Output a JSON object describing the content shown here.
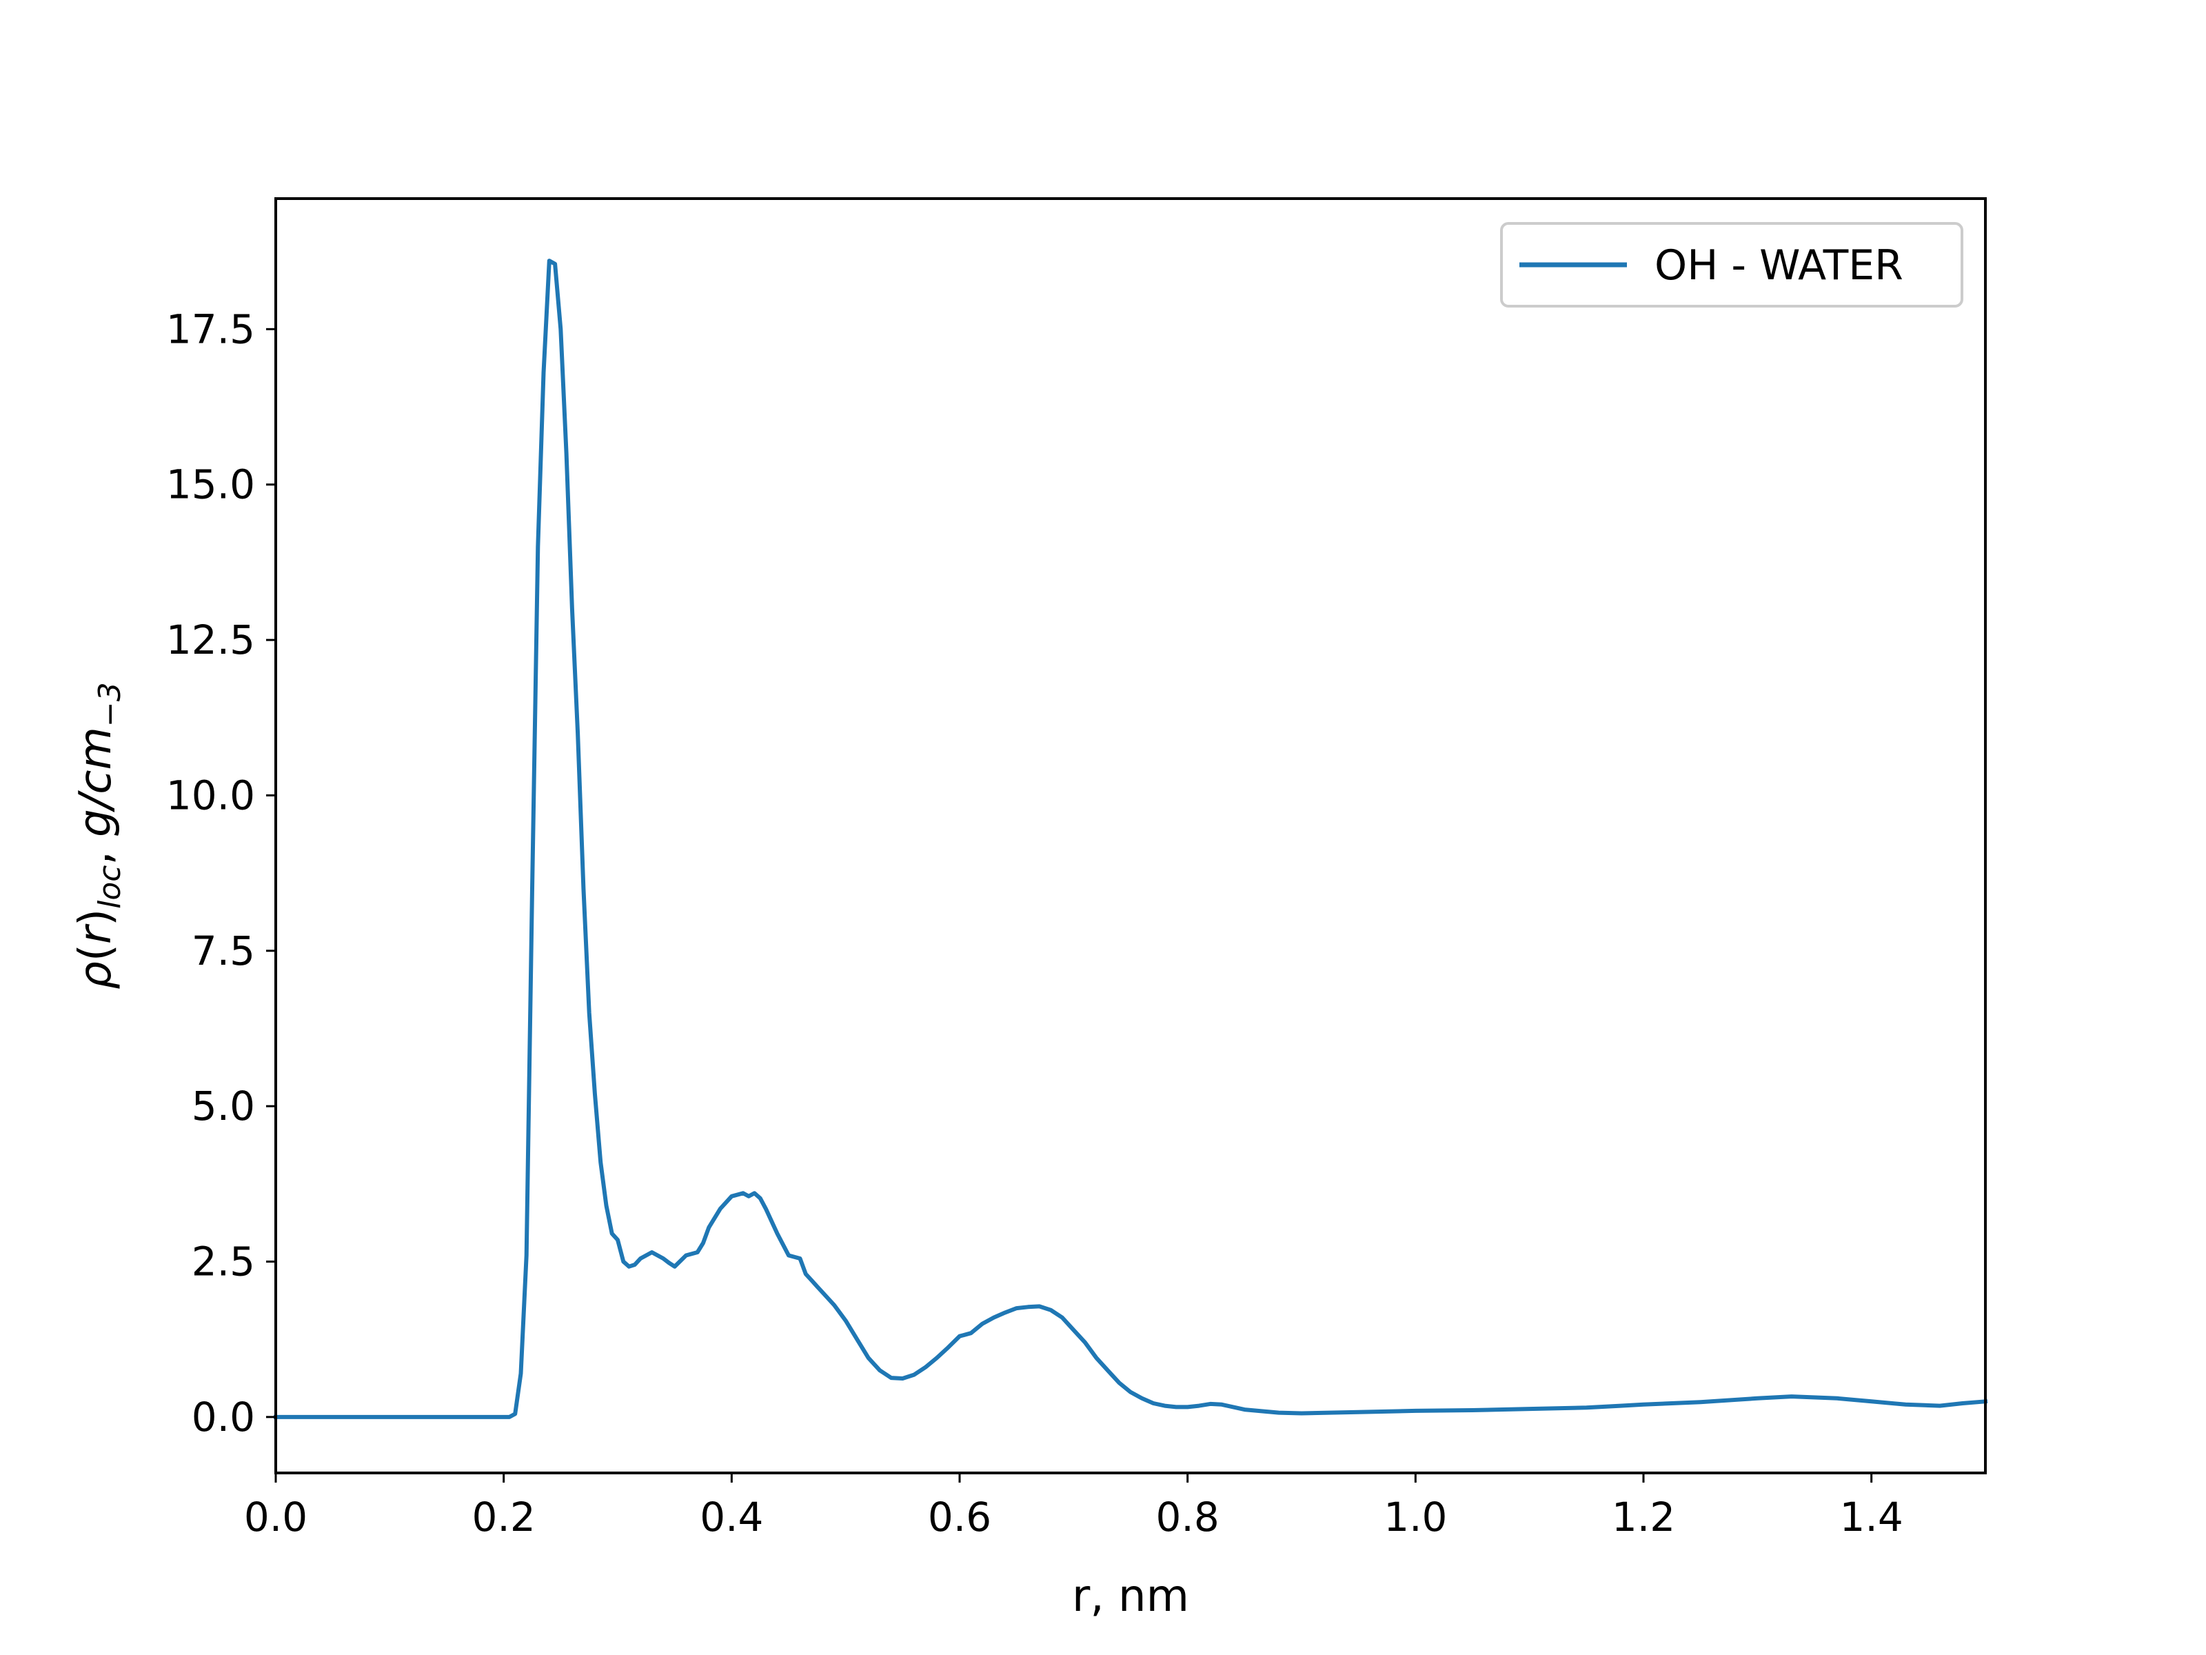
{
  "chart_data": {
    "type": "line",
    "xlabel": "r, nm",
    "ylabel": "ρ(r)_loc, g/cm_−3",
    "ylabel_parts": {
      "rho": "ρ",
      "r_open": "(",
      "r": "r",
      "r_close": ")",
      "sub_loc": "loc",
      "sep": ", ",
      "unit": "g/cm",
      "sub_unit": "−3"
    },
    "xlim": [
      0.0,
      1.5
    ],
    "ylim": [
      -0.9,
      19.6
    ],
    "xticks": [
      0.0,
      0.2,
      0.4,
      0.6,
      0.8,
      1.0,
      1.2,
      1.4
    ],
    "xtick_labels": [
      "0.0",
      "0.2",
      "0.4",
      "0.6",
      "0.8",
      "1.0",
      "1.2",
      "1.4"
    ],
    "yticks": [
      0.0,
      2.5,
      5.0,
      7.5,
      10.0,
      12.5,
      15.0,
      17.5
    ],
    "ytick_labels": [
      "0.0",
      "2.5",
      "5.0",
      "7.5",
      "10.0",
      "12.5",
      "15.0",
      "17.5"
    ],
    "grid": false,
    "legend_position": "top-right",
    "series": [
      {
        "name": "OH - WATER",
        "color": "#1f77b4",
        "x": [
          0.0,
          0.05,
          0.1,
          0.15,
          0.2,
          0.205,
          0.21,
          0.215,
          0.22,
          0.225,
          0.23,
          0.235,
          0.24,
          0.245,
          0.25,
          0.255,
          0.26,
          0.265,
          0.27,
          0.275,
          0.28,
          0.285,
          0.29,
          0.295,
          0.3,
          0.305,
          0.31,
          0.315,
          0.32,
          0.33,
          0.34,
          0.345,
          0.35,
          0.36,
          0.37,
          0.375,
          0.38,
          0.39,
          0.4,
          0.41,
          0.415,
          0.42,
          0.425,
          0.43,
          0.435,
          0.44,
          0.45,
          0.46,
          0.465,
          0.47,
          0.475,
          0.48,
          0.49,
          0.5,
          0.51,
          0.52,
          0.53,
          0.54,
          0.55,
          0.56,
          0.57,
          0.58,
          0.59,
          0.6,
          0.61,
          0.62,
          0.63,
          0.64,
          0.65,
          0.66,
          0.67,
          0.68,
          0.69,
          0.7,
          0.71,
          0.72,
          0.73,
          0.74,
          0.75,
          0.76,
          0.77,
          0.78,
          0.79,
          0.8,
          0.81,
          0.82,
          0.83,
          0.85,
          0.88,
          0.9,
          0.95,
          1.0,
          1.05,
          1.1,
          1.15,
          1.18,
          1.2,
          1.25,
          1.3,
          1.33,
          1.37,
          1.4,
          1.43,
          1.46,
          1.48,
          1.5
        ],
        "y": [
          0.0,
          0.0,
          0.0,
          0.0,
          0.0,
          0.0,
          0.05,
          0.7,
          2.6,
          8.5,
          14.0,
          16.8,
          18.6,
          18.55,
          17.5,
          15.5,
          13.0,
          11.0,
          8.5,
          6.5,
          5.2,
          4.1,
          3.4,
          2.95,
          2.85,
          2.5,
          2.42,
          2.45,
          2.55,
          2.65,
          2.55,
          2.48,
          2.42,
          2.6,
          2.65,
          2.8,
          3.05,
          3.35,
          3.55,
          3.6,
          3.55,
          3.6,
          3.52,
          3.35,
          3.15,
          2.95,
          2.6,
          2.55,
          2.3,
          2.2,
          2.1,
          2.0,
          1.8,
          1.55,
          1.25,
          0.95,
          0.75,
          0.63,
          0.62,
          0.68,
          0.8,
          0.95,
          1.12,
          1.3,
          1.35,
          1.5,
          1.6,
          1.68,
          1.75,
          1.77,
          1.78,
          1.72,
          1.6,
          1.4,
          1.2,
          0.95,
          0.75,
          0.55,
          0.4,
          0.3,
          0.22,
          0.18,
          0.16,
          0.16,
          0.18,
          0.21,
          0.2,
          0.12,
          0.07,
          0.06,
          0.08,
          0.1,
          0.11,
          0.13,
          0.15,
          0.18,
          0.2,
          0.24,
          0.3,
          0.33,
          0.3,
          0.25,
          0.2,
          0.18,
          0.22,
          0.25
        ]
      }
    ]
  }
}
